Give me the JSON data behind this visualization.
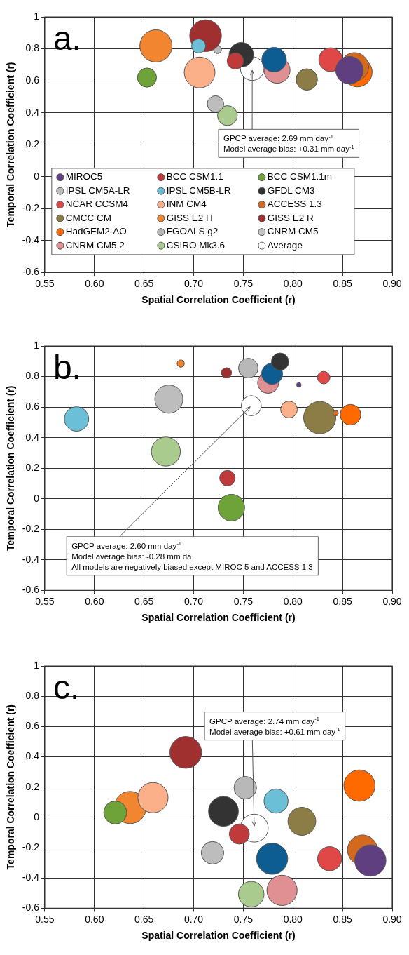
{
  "chart_data": [
    {
      "type": "bubble",
      "title": "a.",
      "xlabel": "Spatial Correlation Coefficient (r)",
      "ylabel": "Temporal Correlation Coefficient (r)",
      "xlim": [
        0.55,
        0.9
      ],
      "xticks": [
        0.55,
        {
          "value": 0.6,
          "label": "0.60"
        },
        0.65,
        {
          "value": 0.7,
          "label": "0.70"
        },
        0.75,
        {
          "value": 0.8,
          "label": "0.80"
        },
        0.85,
        {
          "value": 0.9,
          "label": "0.90"
        }
      ],
      "ylim": [
        -0.6,
        1
      ],
      "yticks": [
        -0.6,
        -0.4,
        -0.2,
        0,
        0.2,
        0.4,
        0.6,
        0.8,
        1
      ],
      "grid": true,
      "legend": "bottom left",
      "annotations": [
        {
          "text": "GPCP average: 2.69 mm day$^{-1}$",
          "x": 0.759,
          "y": 0.676
        },
        "Model average bias: +0.31 mm day$^{-1}$"
      ],
      "series": [
        {
          "name": "MIROC5",
          "color": "#5f3f7f",
          "x": [
            0.857
          ],
          "values": [
            0.666
          ],
          "sizes": [
            0.73
          ]
        },
        {
          "name": "BCC CSM1.1",
          "color": "#c0393b",
          "x": [
            0.742
          ],
          "values": [
            0.724
          ],
          "sizes": [
            0.26
          ]
        },
        {
          "name": "BCC CSM1.1m",
          "color": "#6ea33a",
          "x": [
            0.653
          ],
          "values": [
            0.62
          ],
          "sizes": [
            0.35
          ]
        },
        {
          "name": "IPSL CM5A-LR",
          "color": "#bdbdbd",
          "x": [
            0.722
          ],
          "values": [
            0.455
          ],
          "sizes": [
            0.26
          ]
        },
        {
          "name": "IPSL CM5B-LR",
          "color": "#6bbfd6",
          "x": [
            0.705
          ],
          "values": [
            0.818
          ],
          "sizes": [
            0.19
          ]
        },
        {
          "name": "GFDL CM3",
          "color": "#333333",
          "x": [
            0.748
          ],
          "values": [
            0.763
          ],
          "sizes": [
            0.58
          ]
        },
        {
          "name": "NCAR CCSM4",
          "color": "#e04848",
          "x": [
            0.838
          ],
          "values": [
            0.732
          ],
          "sizes": [
            0.54
          ]
        },
        {
          "name": "INM CM4",
          "color": "#fbb08a",
          "x": [
            0.706
          ],
          "values": [
            0.652
          ],
          "sizes": [
            0.91
          ]
        },
        {
          "name": "ACCESS 1.3",
          "color": "#d2691e",
          "x": [
            0.862
          ],
          "values": [
            0.687
          ],
          "sizes": [
            0.78
          ]
        },
        {
          "name": "CMCC CM",
          "color": "#8b7d45",
          "x": [
            0.814
          ],
          "values": [
            0.608
          ],
          "sizes": [
            0.44
          ]
        },
        {
          "name": "GISS E2 H",
          "color": "#f28530",
          "x": [
            0.662
          ],
          "values": [
            0.818
          ],
          "sizes": [
            1
          ]
        },
        {
          "name": "GISS E2 R",
          "color": "#a03030",
          "x": [
            0.712
          ],
          "values": [
            0.882
          ],
          "sizes": [
            0.97
          ]
        },
        {
          "name": "HadGEM2-AO",
          "color": "#ff6a00",
          "x": [
            0.865
          ],
          "values": [
            0.654
          ],
          "sizes": [
            0.83
          ]
        },
        {
          "name": "FGOALS g2",
          "color": "#b8b8b8",
          "x": [
            0.724
          ],
          "values": [
            0.795
          ],
          "sizes": [
            0.06
          ]
        },
        {
          "name": "CNRM CM5",
          "color": "#c4c4c4",
          "x": [
            null
          ],
          "values": [
            null
          ],
          "sizes": [
            null
          ]
        },
        {
          "color": "#0d5c92",
          "x": [
            0.781
          ],
          "values": [
            0.732
          ],
          "sizes": [
            0.58
          ]
        },
        {
          "name": "CNRM CM5.2",
          "color": "#e08f92",
          "x": [
            0.784
          ],
          "values": [
            0.666
          ],
          "sizes": [
            0.65
          ]
        },
        {
          "name": "CSIRO Mk3.6",
          "color": "#a9cc8e",
          "x": [
            0.734
          ],
          "values": [
            0.382
          ],
          "sizes": [
            0.38
          ]
        },
        {
          "name": "Average",
          "color": "#ffffff",
          "x": [
            0.759
          ],
          "values": [
            0.676
          ],
          "sizes": [
            0.54
          ]
        }
      ]
    },
    {
      "type": "bubble",
      "title": "b.",
      "xlabel": "Spatial Correlation Coefficient (r)",
      "ylabel": "Temporal Correlation Coefficient (r)",
      "xlim": [
        0.55,
        0.9
      ],
      "xticks": [
        0.55,
        {
          "value": 0.6,
          "label": "0.60"
        },
        0.65,
        {
          "value": 0.7,
          "label": "0.70"
        },
        0.75,
        {
          "value": 0.8,
          "label": "0.80"
        },
        0.85,
        {
          "value": 0.9,
          "label": "0.90"
        }
      ],
      "ylim": [
        -0.6,
        1
      ],
      "yticks": [
        -0.6,
        -0.4,
        -0.2,
        0,
        0.2,
        0.4,
        0.6,
        0.8,
        1
      ],
      "grid": true,
      "annotations": [
        {
          "text": "GPCP average: 2.60 mm day$^{-1}$",
          "x": 0.758,
          "y": 0.609
        },
        "Model average bias: -0.28 mm da",
        "All models are negatively biased except MIROC 5 and ACCESS 1.3"
      ],
      "series": [
        {
          "color": "#5f3f7f",
          "x": [
            0.806
          ],
          "values": [
            0.745
          ],
          "sizes": [
            0.02
          ]
        },
        {
          "color": "#c0393b",
          "x": [
            0.734
          ],
          "values": [
            0.135
          ],
          "sizes": [
            0.23
          ]
        },
        {
          "color": "#6ea33a",
          "x": [
            0.738
          ],
          "values": [
            -0.058
          ],
          "sizes": [
            0.68
          ]
        },
        {
          "color": "#bdbdbd",
          "x": [
            0.675
          ],
          "values": [
            0.652
          ],
          "sizes": [
            0.76
          ]
        },
        {
          "color": "#6bbfd6",
          "x": [
            0.582
          ],
          "values": [
            0.522
          ],
          "sizes": [
            0.57
          ]
        },
        {
          "color": "#333333",
          "x": [
            0.787
          ],
          "values": [
            0.897
          ],
          "sizes": [
            0.29
          ]
        },
        {
          "color": "#e04848",
          "x": [
            0.831
          ],
          "values": [
            0.793
          ],
          "sizes": [
            0.15
          ]
        },
        {
          "color": "#fbb08a",
          "x": [
            0.796
          ],
          "values": [
            0.584
          ],
          "sizes": [
            0.27
          ]
        },
        {
          "color": "#d2691e",
          "x": [
            0.843
          ],
          "values": [
            0.56
          ],
          "sizes": [
            0.03
          ]
        },
        {
          "color": "#8b7d45",
          "x": [
            0.827
          ],
          "values": [
            0.531
          ],
          "sizes": [
            1
          ]
        },
        {
          "color": "#f28530",
          "x": [
            0.687
          ],
          "values": [
            0.885
          ],
          "sizes": [
            0.05
          ]
        },
        {
          "color": "#a03030",
          "x": [
            0.733
          ],
          "values": [
            0.824
          ],
          "sizes": [
            0.1
          ]
        },
        {
          "color": "#ff6a00",
          "x": [
            0.858
          ],
          "values": [
            0.55
          ],
          "sizes": [
            0.41
          ]
        },
        {
          "color": "#b8b8b8",
          "x": [
            0.755
          ],
          "values": [
            0.855
          ],
          "sizes": [
            0.37
          ]
        },
        {
          "color": "#0d5c92",
          "x": [
            0.779
          ],
          "values": [
            0.818
          ],
          "sizes": [
            0.43
          ]
        },
        {
          "color": "#e08f92",
          "x": [
            0.775
          ],
          "values": [
            0.759
          ],
          "sizes": [
            0.43
          ]
        },
        {
          "color": "#a9cc8e",
          "x": [
            0.672
          ],
          "values": [
            0.309
          ],
          "sizes": [
            0.81
          ]
        },
        {
          "color": "#ffffff",
          "x": [
            0.758
          ],
          "values": [
            0.609
          ],
          "sizes": [
            0.39
          ]
        }
      ]
    },
    {
      "type": "bubble",
      "title": "c.",
      "xlabel": "Spatial Correlation Coefficient (r)",
      "ylabel": "Temporal Correlation Coefficient (r)",
      "xlim": [
        0.55,
        0.9
      ],
      "xticks": [
        0.55,
        {
          "value": 0.6,
          "label": "0.60"
        },
        0.65,
        {
          "value": 0.7,
          "label": "0.70"
        },
        0.75,
        {
          "value": 0.8,
          "label": "0.80"
        },
        0.85,
        {
          "value": 0.9,
          "label": "0.90"
        }
      ],
      "ylim": [
        -0.6,
        1
      ],
      "yticks": [
        -0.6,
        -0.4,
        -0.2,
        0,
        0.2,
        0.4,
        0.6,
        0.8,
        1
      ],
      "grid": true,
      "annotations": [
        "GPCP average: 2.74 mm day$^{-1}$",
        {
          "text": "Model average bias: +0.61 mm day$^{-1}$",
          "x": 0.761,
          "y": -0.071
        }
      ],
      "series": [
        {
          "color": "#5f3f7f",
          "x": [
            0.878
          ],
          "values": [
            -0.285
          ],
          "sizes": [
            0.94
          ]
        },
        {
          "color": "#c0393b",
          "x": [
            0.746
          ],
          "values": [
            -0.11
          ],
          "sizes": [
            0.39
          ]
        },
        {
          "color": "#6ea33a",
          "x": [
            0.621
          ],
          "values": [
            0.032
          ],
          "sizes": [
            0.51
          ]
        },
        {
          "color": "#bdbdbd",
          "x": [
            0.719
          ],
          "values": [
            -0.234
          ],
          "sizes": [
            0.49
          ]
        },
        {
          "color": "#6bbfd6",
          "x": [
            0.783
          ],
          "values": [
            0.108
          ],
          "sizes": [
            0.56
          ]
        },
        {
          "color": "#333333",
          "x": [
            0.73
          ],
          "values": [
            0.04
          ],
          "sizes": [
            0.86
          ]
        },
        {
          "color": "#e04848",
          "x": [
            0.837
          ],
          "values": [
            -0.273
          ],
          "sizes": [
            0.56
          ]
        },
        {
          "color": "#fbb08a",
          "x": [
            0.659
          ],
          "values": [
            0.13
          ],
          "sizes": [
            0.88
          ]
        },
        {
          "color": "#d2691e",
          "x": [
            0.87
          ],
          "values": [
            -0.215
          ],
          "sizes": [
            0.86
          ]
        },
        {
          "color": "#8b7d45",
          "x": [
            0.809
          ],
          "values": [
            -0.026
          ],
          "sizes": [
            0.75
          ]
        },
        {
          "color": "#f28530",
          "x": [
            0.636
          ],
          "values": [
            0.065
          ],
          "sizes": [
            1
          ]
        },
        {
          "color": "#a03030",
          "x": [
            0.692
          ],
          "values": [
            0.429
          ],
          "sizes": [
            0.97
          ]
        },
        {
          "color": "#ff6a00",
          "x": [
            0.867
          ],
          "values": [
            0.21
          ],
          "sizes": [
            0.94
          ]
        },
        {
          "color": "#b8b8b8",
          "x": [
            0.752
          ],
          "values": [
            0.196
          ],
          "sizes": [
            0.49
          ]
        },
        {
          "color": "#0d5c92",
          "x": [
            0.779
          ],
          "values": [
            -0.273
          ],
          "sizes": [
            0.94
          ]
        },
        {
          "color": "#e08f92",
          "x": [
            0.789
          ],
          "values": [
            -0.482
          ],
          "sizes": [
            0.88
          ]
        },
        {
          "color": "#a9cc8e",
          "x": [
            0.758
          ],
          "values": [
            -0.507
          ],
          "sizes": [
            0.63
          ]
        },
        {
          "color": "#ffffff",
          "x": [
            0.761
          ],
          "values": [
            -0.071
          ],
          "sizes": [
            0.75
          ]
        }
      ]
    }
  ]
}
